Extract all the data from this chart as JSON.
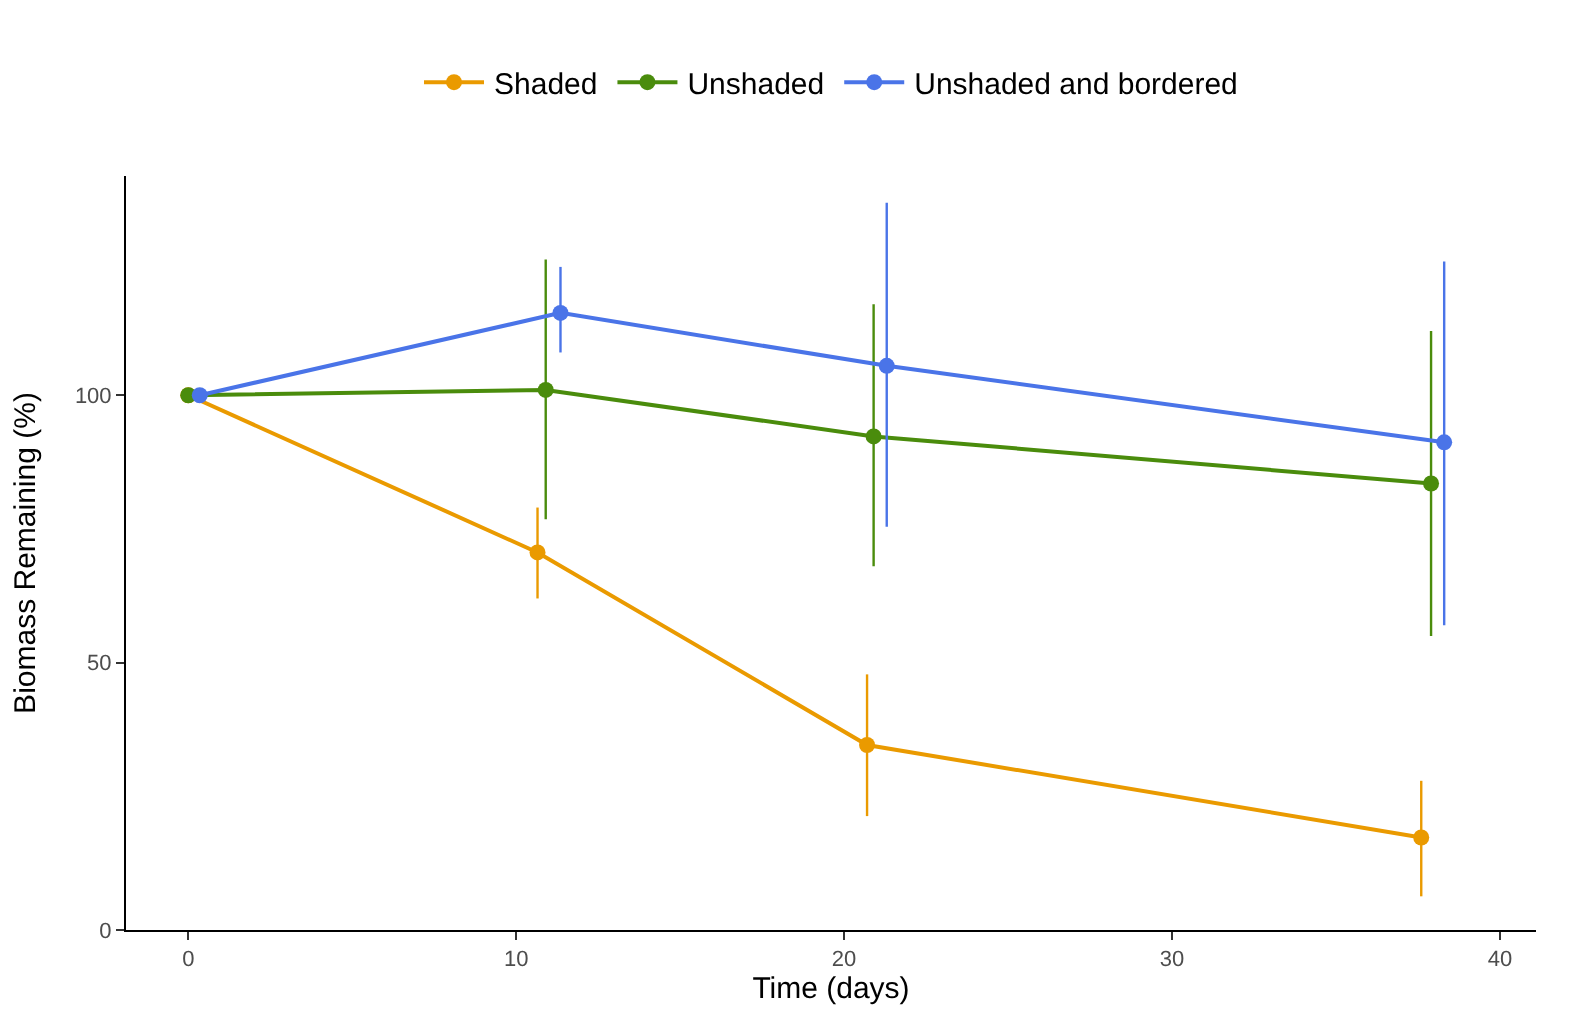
{
  "chart_data": {
    "type": "line",
    "xlabel": "Time (days)",
    "ylabel": "Biomass Remaining (%)",
    "xlim": [
      -1.9,
      41.1
    ],
    "xticks": [
      0,
      10,
      20,
      30,
      40
    ],
    "ylim": [
      0,
      141
    ],
    "yticks": [
      0,
      50,
      100
    ],
    "grid": false,
    "legend": "top",
    "marker": "circle",
    "line_style": "solid",
    "series": [
      {
        "name": "Shaded",
        "color": "#ea9a00",
        "x": [
          0,
          10.65,
          20.7,
          37.6
        ],
        "values": [
          100,
          70.6,
          34.6,
          17.3
        ],
        "errors": [
          null,
          [
            62,
            79
          ],
          [
            21.3,
            47.8
          ],
          [
            6.3,
            27.9
          ]
        ]
      },
      {
        "name": "Unshaded",
        "color": "#4a8c0c",
        "x": [
          0,
          10.9,
          20.9,
          37.9
        ],
        "values": [
          100,
          101,
          92.3,
          83.5
        ],
        "errors": [
          null,
          [
            76.8,
            125.4
          ],
          [
            68,
            117
          ],
          [
            55,
            112
          ]
        ]
      },
      {
        "name": "Unshaded and bordered",
        "color": "#4a74e8",
        "x": [
          0.35,
          11.35,
          21.3,
          38.3
        ],
        "values": [
          100,
          115.4,
          105.5,
          91.2
        ],
        "errors": [
          null,
          [
            108,
            124
          ],
          [
            75.4,
            136
          ],
          [
            57,
            125
          ]
        ]
      }
    ]
  }
}
